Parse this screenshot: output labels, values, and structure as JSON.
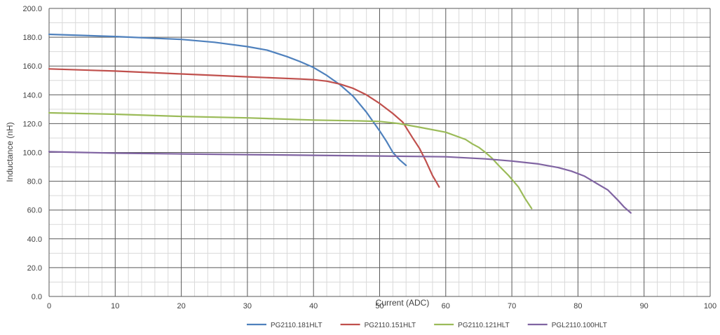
{
  "chart_data": {
    "type": "line",
    "title": "",
    "xlabel": "Current (ADC)",
    "ylabel": "Inductance (nH)",
    "xlim": [
      0,
      100
    ],
    "ylim": [
      0,
      200
    ],
    "x_ticks": [
      "0",
      "10",
      "20",
      "30",
      "40",
      "50",
      "60",
      "70",
      "80",
      "90",
      "100"
    ],
    "y_ticks": [
      "0.0",
      "20.0",
      "40.0",
      "60.0",
      "80.0",
      "100.0",
      "120.0",
      "140.0",
      "160.0",
      "180.0",
      "200.0"
    ],
    "grid": true,
    "legend_position": "bottom",
    "series": [
      {
        "name": "PG2110.181HLT",
        "color": "#4f81bd",
        "points": [
          [
            0,
            182
          ],
          [
            10,
            180.5
          ],
          [
            20,
            178.5
          ],
          [
            25,
            176.5
          ],
          [
            30,
            173.5
          ],
          [
            33,
            171
          ],
          [
            36,
            166.5
          ],
          [
            38,
            163
          ],
          [
            40,
            159
          ],
          [
            42,
            153.5
          ],
          [
            44,
            147
          ],
          [
            46,
            139
          ],
          [
            48,
            128
          ],
          [
            50,
            115
          ],
          [
            51,
            108
          ],
          [
            52,
            100
          ],
          [
            53,
            95
          ],
          [
            53.5,
            93
          ],
          [
            54,
            91
          ]
        ]
      },
      {
        "name": "PG2110.151HLT",
        "color": "#c0504d",
        "points": [
          [
            0,
            158
          ],
          [
            10,
            156.5
          ],
          [
            20,
            154.5
          ],
          [
            30,
            152.5
          ],
          [
            38,
            151
          ],
          [
            40,
            150.5
          ],
          [
            42,
            149.5
          ],
          [
            44,
            147.5
          ],
          [
            46,
            144.5
          ],
          [
            48,
            140
          ],
          [
            50,
            134
          ],
          [
            52,
            127
          ],
          [
            53.5,
            121
          ],
          [
            55,
            110
          ],
          [
            56,
            103
          ],
          [
            57,
            94
          ],
          [
            58,
            84
          ],
          [
            58.5,
            80
          ],
          [
            59,
            76
          ]
        ]
      },
      {
        "name": "PG2110.121HLT",
        "color": "#9bbb59",
        "points": [
          [
            0,
            127.5
          ],
          [
            10,
            126.5
          ],
          [
            20,
            125
          ],
          [
            30,
            124
          ],
          [
            40,
            122.5
          ],
          [
            46,
            122
          ],
          [
            50,
            121.5
          ],
          [
            53,
            120
          ],
          [
            56,
            117.5
          ],
          [
            60,
            114
          ],
          [
            63,
            109
          ],
          [
            64,
            106
          ],
          [
            65,
            103.5
          ],
          [
            66,
            100
          ],
          [
            67,
            96
          ],
          [
            68,
            91
          ],
          [
            69.5,
            84
          ],
          [
            71,
            76
          ],
          [
            72,
            68
          ],
          [
            73,
            61
          ]
        ]
      },
      {
        "name": "PGL2110.100HLT",
        "color": "#8064a2",
        "points": [
          [
            0,
            100.5
          ],
          [
            10,
            99.5
          ],
          [
            20,
            99
          ],
          [
            30,
            98.5
          ],
          [
            40,
            98
          ],
          [
            50,
            97.5
          ],
          [
            60,
            97
          ],
          [
            66,
            95.5
          ],
          [
            70,
            94
          ],
          [
            74,
            92
          ],
          [
            77,
            89.5
          ],
          [
            79,
            87
          ],
          [
            81,
            83.5
          ],
          [
            83,
            78
          ],
          [
            84.5,
            74
          ],
          [
            86,
            67
          ],
          [
            87,
            62
          ],
          [
            88,
            58
          ]
        ]
      }
    ]
  }
}
